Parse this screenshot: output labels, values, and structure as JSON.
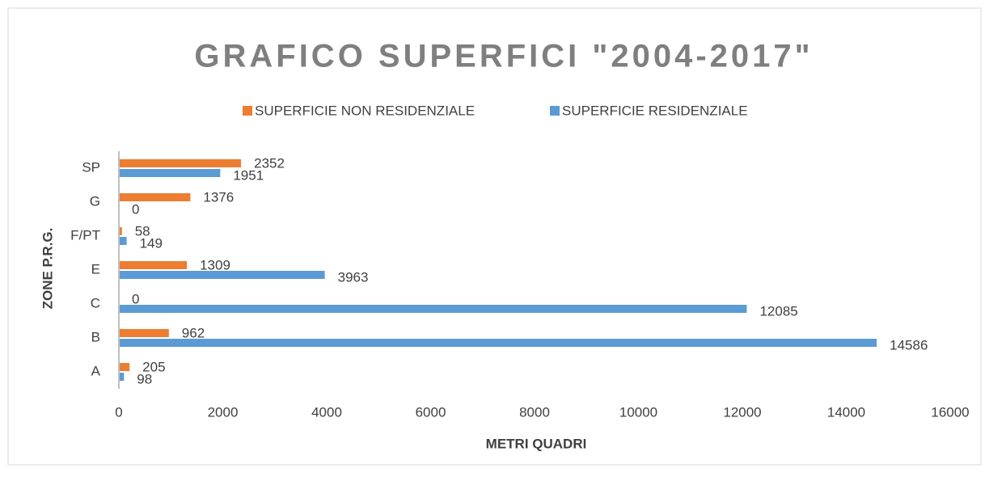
{
  "chart_data": {
    "type": "barh",
    "title": "GRAFICO SUPERFICI \"2004-2017\"",
    "x_label": "METRI QUADRI",
    "y_label": "ZONE P.R.G.",
    "categories": [
      "A",
      "B",
      "C",
      "E",
      "F/PT",
      "G",
      "SP"
    ],
    "series": [
      {
        "name": "SUPERFICIE  NON RESIDENZIALE",
        "color": "#ed7d31",
        "values": [
          205,
          962,
          0,
          1309,
          58,
          1376,
          2352
        ]
      },
      {
        "name": "SUPERFICIE  RESIDENZIALE",
        "color": "#5b9bd5",
        "values": [
          98,
          14586,
          12085,
          3963,
          149,
          0,
          1951
        ]
      }
    ],
    "xlim": [
      0,
      16000
    ],
    "xticks": [
      0,
      2000,
      4000,
      6000,
      8000,
      10000,
      12000,
      14000,
      16000
    ],
    "grid": false,
    "legend": "top"
  }
}
